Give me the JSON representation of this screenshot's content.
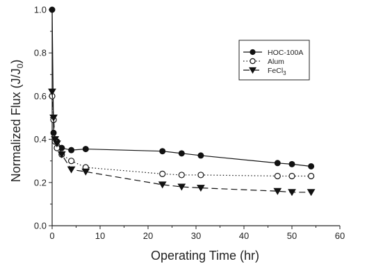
{
  "chart_data": {
    "type": "line",
    "title": "",
    "xlabel": "Operating Time (hr)",
    "ylabel": "Normalized Flux (J/J",
    "ylabel_sub": "0",
    "ylabel_end": ")",
    "xlim": [
      0,
      60
    ],
    "ylim": [
      0.0,
      1.0
    ],
    "x_ticks": [
      "0",
      "10",
      "20",
      "30",
      "40",
      "50",
      "60"
    ],
    "y_ticks": [
      "0.0",
      "0.2",
      "0.4",
      "0.6",
      "0.8",
      "1.0"
    ],
    "grid": false,
    "legend_position": "top-right",
    "series": [
      {
        "name": "HOC-100A",
        "line_style": "solid",
        "marker": "filled-circle",
        "x": [
          0,
          0.3,
          1,
          2,
          4,
          7,
          23,
          27,
          31,
          47,
          50,
          54
        ],
        "y": [
          1.0,
          0.43,
          0.39,
          0.36,
          0.35,
          0.355,
          0.345,
          0.335,
          0.325,
          0.29,
          0.285,
          0.275
        ]
      },
      {
        "name": "Alum",
        "line_style": "dotted",
        "marker": "open-circle",
        "x": [
          0,
          0.3,
          0.6,
          1,
          2,
          4,
          7,
          23,
          27,
          31,
          47,
          50,
          54
        ],
        "y": [
          0.6,
          0.49,
          0.39,
          0.36,
          0.33,
          0.3,
          0.27,
          0.24,
          0.235,
          0.235,
          0.23,
          0.23,
          0.23
        ]
      },
      {
        "name": "FeCl",
        "name_sub": "3",
        "line_style": "dashed",
        "marker": "filled-triangle-down",
        "x": [
          0,
          0.3,
          0.6,
          1,
          2,
          4,
          7,
          23,
          27,
          31,
          47,
          50,
          54
        ],
        "y": [
          0.62,
          0.5,
          0.4,
          0.38,
          0.33,
          0.26,
          0.25,
          0.19,
          0.18,
          0.175,
          0.16,
          0.155,
          0.155
        ]
      }
    ]
  }
}
